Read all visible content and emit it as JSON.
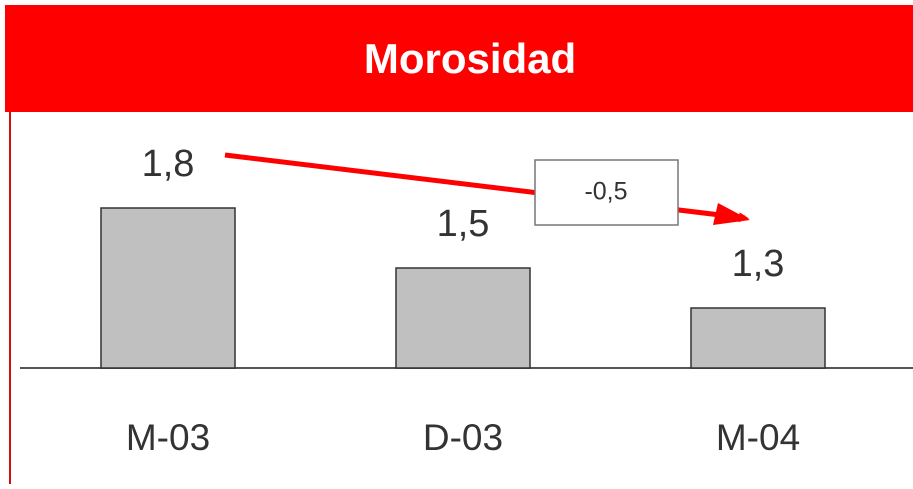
{
  "chart_data": {
    "type": "bar",
    "title": "Morosidad",
    "categories": [
      "M-03",
      "D-03",
      "M-04"
    ],
    "values": [
      1.8,
      1.5,
      1.3
    ],
    "value_labels": [
      "1,8",
      "1,5",
      "1,3"
    ],
    "color": "#c0c0c0",
    "ylim": [
      1,
      2.5
    ],
    "annotation": "-0,5"
  }
}
